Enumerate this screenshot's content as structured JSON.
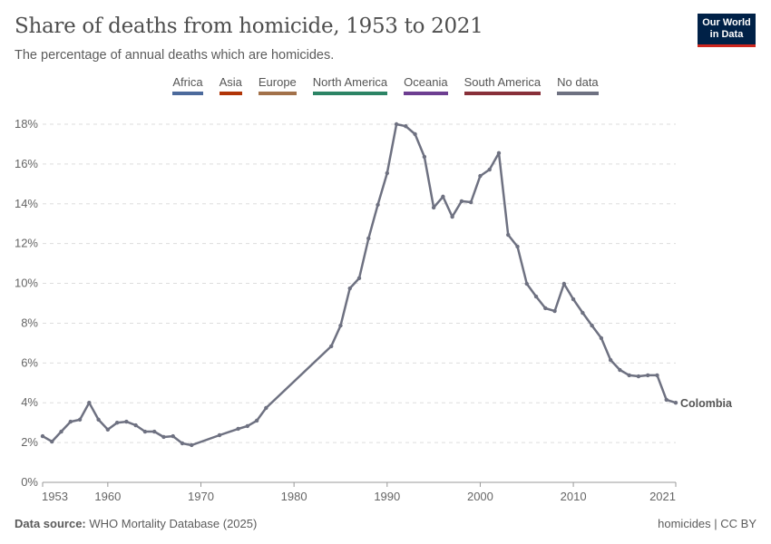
{
  "header": {
    "title": "Share of deaths from homicide, 1953 to 2021",
    "subtitle": "The percentage of annual deaths which are homicides.",
    "logo": "Our World in Data"
  },
  "legend": [
    {
      "label": "Africa",
      "color": "#4c6a9c"
    },
    {
      "label": "Asia",
      "color": "#b13507"
    },
    {
      "label": "Europe",
      "color": "#a2714a"
    },
    {
      "label": "North America",
      "color": "#2c8465"
    },
    {
      "label": "Oceania",
      "color": "#6d3e91"
    },
    {
      "label": "South America",
      "color": "#883039"
    },
    {
      "label": "No data",
      "color": "#6e7181"
    }
  ],
  "footer": {
    "source_label": "Data source:",
    "source": "WHO Mortality Database (2025)",
    "license": "homicides | CC BY"
  },
  "chart_data": {
    "type": "line",
    "title": "Share of deaths from homicide, 1953 to 2021",
    "xlim": [
      1953,
      2021
    ],
    "ylim": [
      0,
      18
    ],
    "x_ticks": [
      "1953",
      "1960",
      "1970",
      "1980",
      "1990",
      "2000",
      "2010",
      "2021"
    ],
    "y_ticks": [
      "0%",
      "2%",
      "4%",
      "6%",
      "8%",
      "10%",
      "12%",
      "14%",
      "16%",
      "18%"
    ],
    "grid": true,
    "series": [
      {
        "name": "Colombia",
        "color": "#6e7181",
        "x": [
          1953,
          1954,
          1955,
          1956,
          1957,
          1958,
          1959,
          1960,
          1961,
          1962,
          1963,
          1964,
          1965,
          1966,
          1967,
          1968,
          1969,
          1972,
          1974,
          1975,
          1976,
          1977,
          1984,
          1985,
          1986,
          1987,
          1988,
          1989,
          1990,
          1991,
          1992,
          1993,
          1994,
          1995,
          1996,
          1997,
          1998,
          1999,
          2000,
          2001,
          2002,
          2003,
          2004,
          2005,
          2006,
          2007,
          2008,
          2009,
          2010,
          2011,
          2012,
          2013,
          2014,
          2015,
          2016,
          2017,
          2018,
          2019,
          2020,
          2021
        ],
        "y": [
          2.32,
          2.05,
          2.55,
          3.05,
          3.15,
          4.0,
          3.15,
          2.65,
          3.0,
          3.05,
          2.87,
          2.55,
          2.55,
          2.28,
          2.32,
          1.96,
          1.87,
          2.37,
          2.69,
          2.83,
          3.1,
          3.74,
          6.84,
          7.88,
          9.75,
          10.26,
          12.26,
          13.95,
          15.54,
          18.0,
          17.9,
          17.5,
          16.36,
          13.81,
          14.36,
          13.35,
          14.13,
          14.08,
          15.4,
          15.72,
          16.55,
          12.44,
          11.85,
          9.98,
          9.34,
          8.75,
          8.61,
          9.98,
          9.2,
          8.52,
          7.88,
          7.25,
          6.15,
          5.65,
          5.38,
          5.33,
          5.38,
          5.38,
          4.15,
          4.0
        ]
      }
    ]
  }
}
